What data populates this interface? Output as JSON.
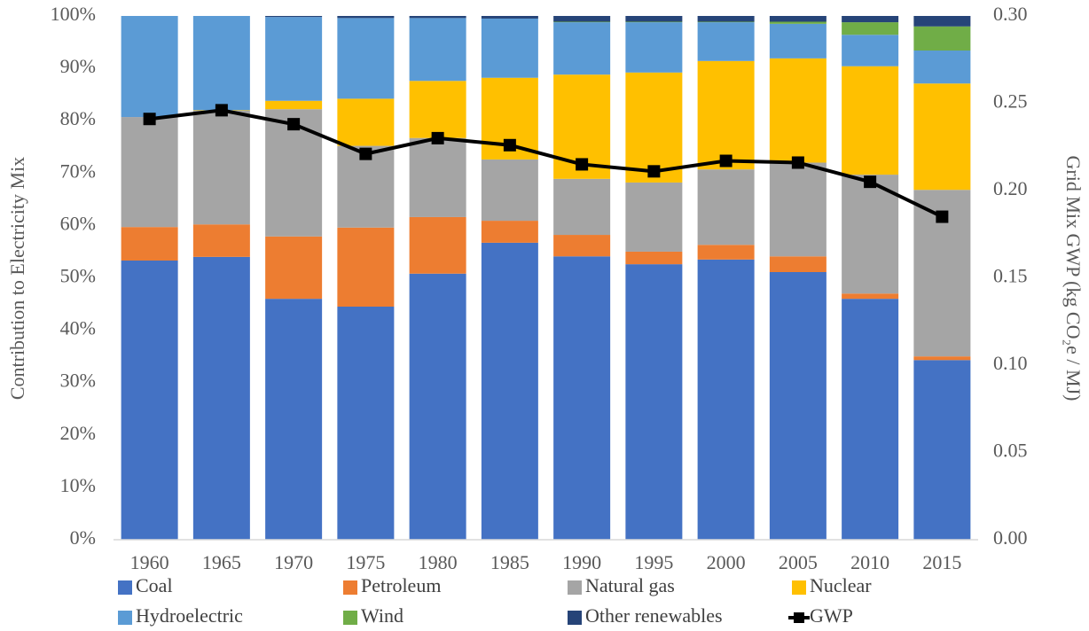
{
  "chart_data": {
    "type": "bar",
    "stacked": true,
    "categories": [
      "1960",
      "1965",
      "1970",
      "1975",
      "1980",
      "1985",
      "1990",
      "1995",
      "2000",
      "2005",
      "2010",
      "2015"
    ],
    "y_label": "Contribution to Electricity Mix",
    "y2_label": "Grid Mix GWP (kg CO₂e / MJ)",
    "ylim": [
      0,
      100
    ],
    "yticks": [
      {
        "value": 0,
        "label": "0%"
      },
      {
        "value": 10,
        "label": "10%"
      },
      {
        "value": 20,
        "label": "20%"
      },
      {
        "value": 30,
        "label": "30%"
      },
      {
        "value": 40,
        "label": "40%"
      },
      {
        "value": 50,
        "label": "50%"
      },
      {
        "value": 60,
        "label": "60%"
      },
      {
        "value": 70,
        "label": "70%"
      },
      {
        "value": 80,
        "label": "80%"
      },
      {
        "value": 90,
        "label": "90%"
      },
      {
        "value": 100,
        "label": "100%"
      }
    ],
    "y2lim": [
      0,
      0.3
    ],
    "y2ticks": [
      {
        "value": 0,
        "label": "0.00"
      },
      {
        "value": 0.05,
        "label": "0.05"
      },
      {
        "value": 0.1,
        "label": "0.10"
      },
      {
        "value": 0.15,
        "label": "0.15"
      },
      {
        "value": 0.2,
        "label": "0.20"
      },
      {
        "value": 0.25,
        "label": "0.25"
      },
      {
        "value": 0.3,
        "label": "0.30"
      }
    ],
    "grid": false,
    "legend": "bottom",
    "series": [
      {
        "name": "Coal",
        "color": "#4472c4",
        "values": [
          53.3,
          54.0,
          46.0,
          44.5,
          50.8,
          56.7,
          54.1,
          52.6,
          53.5,
          51.1,
          46.0,
          34.3
        ]
      },
      {
        "name": "Petroleum",
        "color": "#ed7d31",
        "values": [
          6.4,
          6.2,
          11.9,
          15.1,
          10.8,
          4.2,
          4.1,
          2.4,
          2.8,
          3.0,
          1.0,
          0.7
        ]
      },
      {
        "name": "Natural gas",
        "color": "#a5a5a5",
        "values": [
          21.0,
          21.7,
          24.3,
          15.6,
          15.1,
          11.7,
          10.7,
          13.2,
          14.4,
          17.9,
          22.7,
          31.8
        ]
      },
      {
        "name": "Nuclear",
        "color": "#ffc000",
        "values": [
          0,
          0.1,
          1.6,
          9.0,
          10.9,
          15.6,
          19.9,
          21.0,
          20.7,
          19.9,
          20.7,
          20.3
        ]
      },
      {
        "name": "Hydroelectric",
        "color": "#5b9bd5",
        "values": [
          19.3,
          18.0,
          16.0,
          15.4,
          12.0,
          11.3,
          10.0,
          9.6,
          7.4,
          6.6,
          6.0,
          6.3
        ]
      },
      {
        "name": "Wind",
        "color": "#70ad47",
        "values": [
          0,
          0,
          0,
          0,
          0,
          0,
          0.1,
          0.1,
          0.1,
          0.4,
          2.4,
          4.6
        ]
      },
      {
        "name": "Other renewables",
        "color": "#264478",
        "values": [
          0,
          0,
          0.2,
          0.4,
          0.4,
          0.5,
          1.1,
          1.1,
          1.1,
          1.1,
          1.2,
          2.0
        ]
      },
      {
        "name": "GWP",
        "color": "#000000",
        "type": "line",
        "axis": "y2",
        "values": [
          0.241,
          0.246,
          0.238,
          0.221,
          0.23,
          0.226,
          0.215,
          0.211,
          0.217,
          0.216,
          0.205,
          0.185
        ]
      }
    ]
  }
}
